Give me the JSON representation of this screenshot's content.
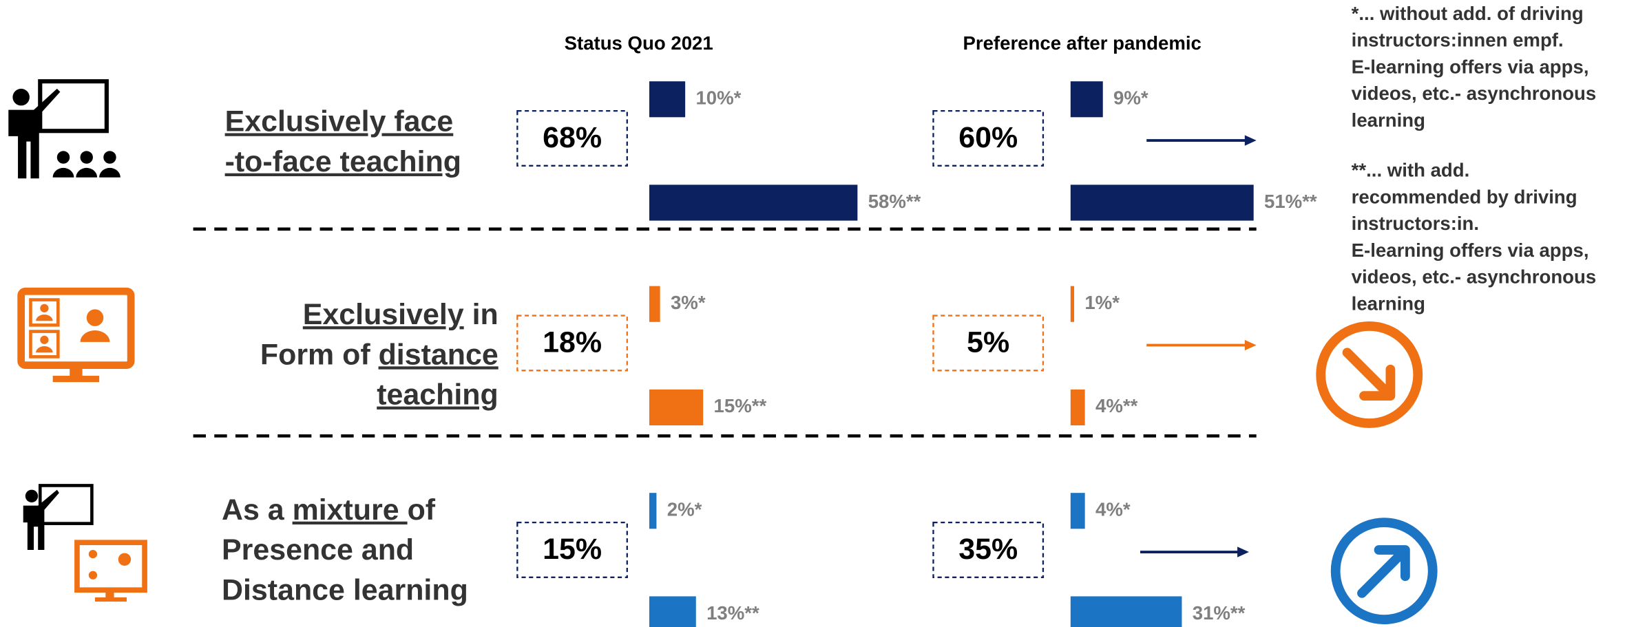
{
  "columns": [
    "Status Quo 2021",
    "Preference after pandemic"
  ],
  "rows": [
    {
      "label": [
        [
          {
            "text": "Exclusively face",
            "underline": true
          }
        ],
        [
          {
            "text": "-to-face teaching",
            "underline": true
          }
        ]
      ],
      "color": "#0b2160",
      "box_color": "#0b2160",
      "status": {
        "total": "68%",
        "values": [
          10,
          58
        ],
        "value_labels": [
          "10%*",
          "58%**"
        ]
      },
      "preference": {
        "total": "60%",
        "values": [
          9,
          51
        ],
        "value_labels": [
          "9%*",
          "51%**"
        ]
      }
    },
    {
      "label": [
        [
          {
            "text": "Exclusively",
            "underline": true
          },
          {
            "text": " in",
            "underline": false
          }
        ],
        [
          {
            "text": "Form of ",
            "underline": false
          },
          {
            "text": "distance",
            "underline": true
          }
        ],
        [
          {
            "text": "teaching",
            "underline": true
          }
        ]
      ],
      "color": "#f07014",
      "box_color": "#f07014",
      "status": {
        "total": "18%",
        "values": [
          3,
          15
        ],
        "value_labels": [
          "3%*",
          "15%**"
        ]
      },
      "preference": {
        "total": "5%",
        "values": [
          1,
          4
        ],
        "value_labels": [
          "1%*",
          "4%**"
        ]
      }
    },
    {
      "label": [
        [
          {
            "text": "As a ",
            "underline": false
          },
          {
            "text": "mixture ",
            "underline": true
          },
          {
            "text": "of",
            "underline": false
          }
        ],
        [
          {
            "text": "Presence and",
            "underline": false
          }
        ],
        [
          {
            "text": "Distance learning",
            "underline": false
          }
        ]
      ],
      "color": "#1b75c4",
      "box_color": "#0b2160",
      "status": {
        "total": "15%",
        "values": [
          2,
          13
        ],
        "value_labels": [
          "2%*",
          "13%**"
        ]
      },
      "preference": {
        "total": "35%",
        "values": [
          4,
          31
        ],
        "value_labels": [
          "4%*",
          "31%**"
        ]
      }
    }
  ],
  "footnotes": [
    [
      "*... without add. of driving",
      "instructors:innen empf.",
      "E-learning offers via apps,",
      "videos, etc.- asynchronous",
      "learning"
    ],
    [
      "**... with add.",
      "recommended by driving",
      "instructors:in.",
      "E-learning offers via apps,",
      "videos, etc.- asynchronous",
      "learning"
    ]
  ]
}
